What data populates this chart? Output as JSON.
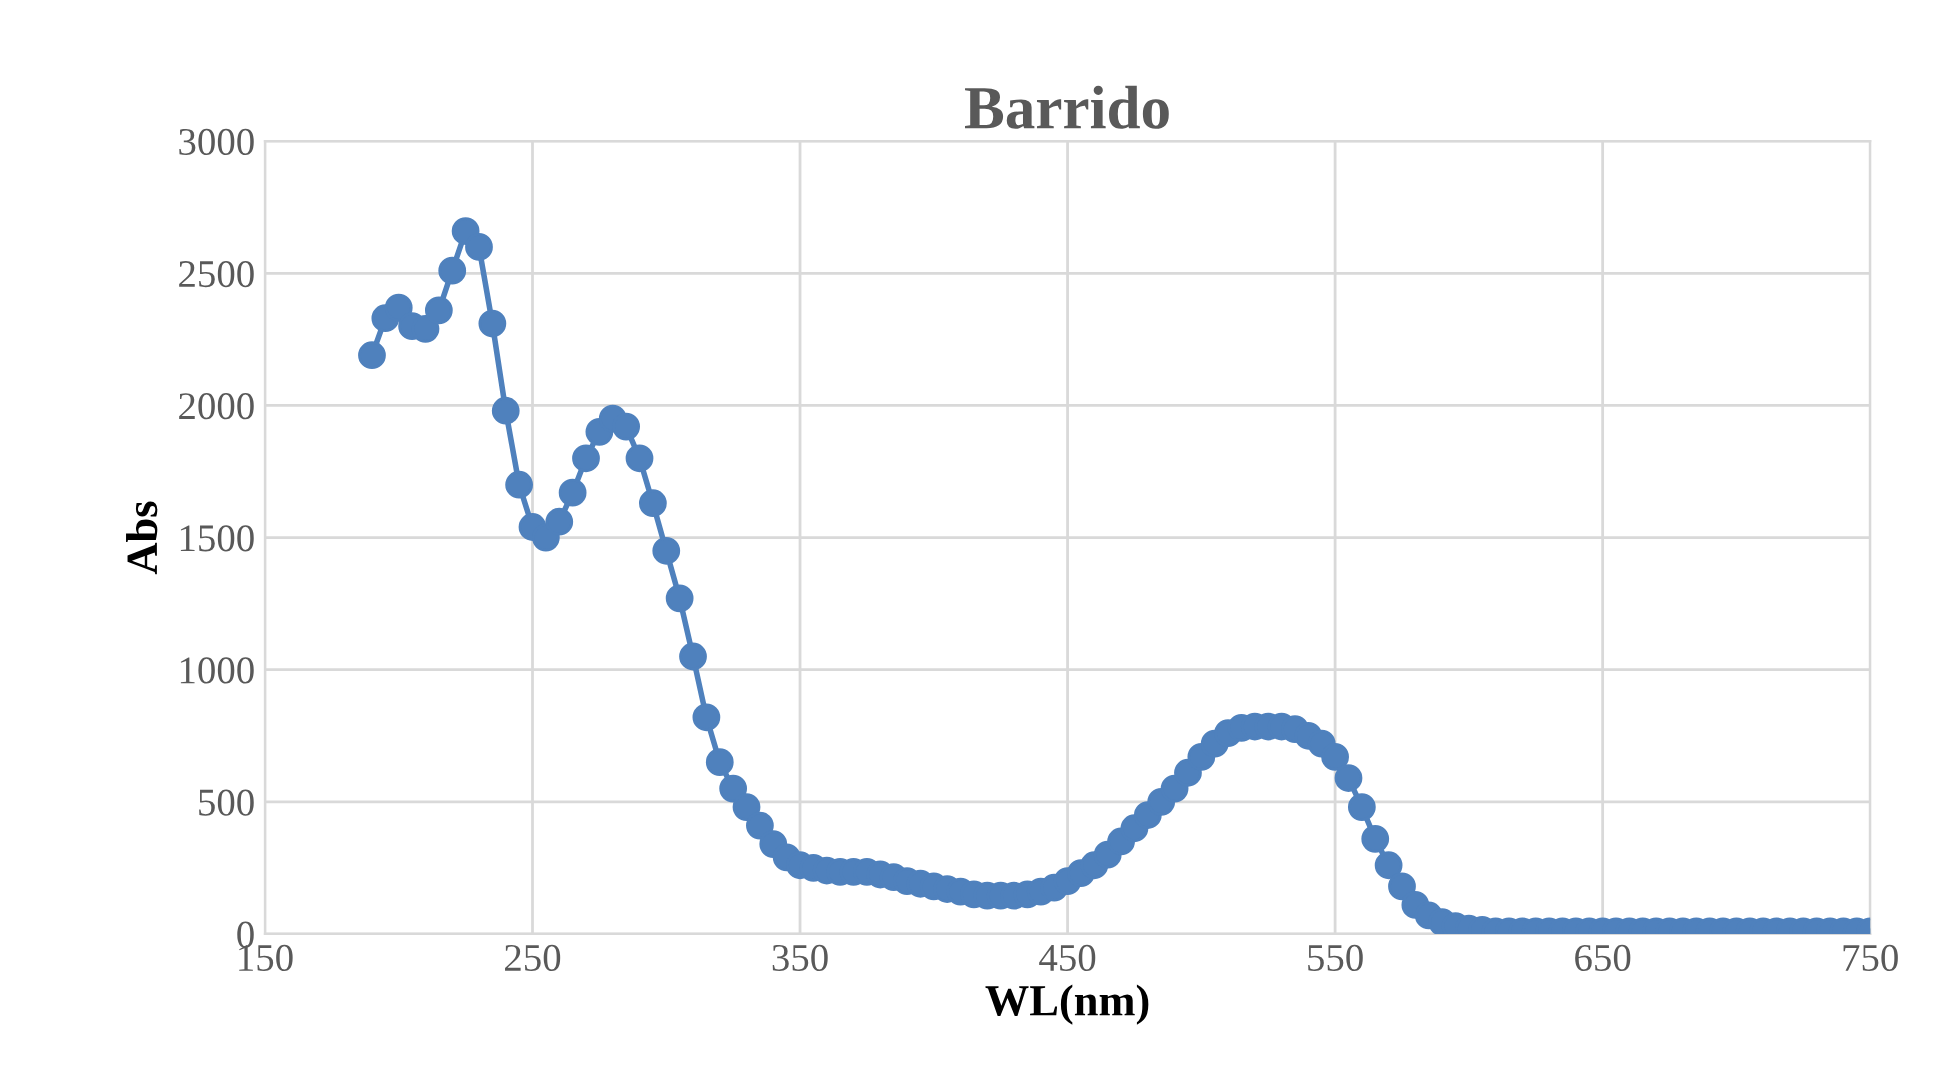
{
  "chart_data": {
    "type": "line",
    "title": "Barrido",
    "xlabel": "WL(nm)",
    "ylabel": "Abs",
    "x": [
      190,
      195,
      200,
      205,
      210,
      215,
      220,
      225,
      230,
      235,
      240,
      245,
      250,
      255,
      260,
      265,
      270,
      275,
      280,
      285,
      290,
      295,
      300,
      305,
      310,
      315,
      320,
      325,
      330,
      335,
      340,
      345,
      350,
      355,
      360,
      365,
      370,
      375,
      380,
      385,
      390,
      395,
      400,
      405,
      410,
      415,
      420,
      425,
      430,
      435,
      440,
      445,
      450,
      455,
      460,
      465,
      470,
      475,
      480,
      485,
      490,
      495,
      500,
      505,
      510,
      515,
      520,
      525,
      530,
      535,
      540,
      545,
      550,
      555,
      560,
      565,
      570,
      575,
      580,
      585,
      590,
      595,
      600,
      605,
      610,
      615,
      620,
      625,
      630,
      635,
      640,
      645,
      650,
      655,
      660,
      665,
      670,
      675,
      680,
      685,
      690,
      695,
      700,
      705,
      710,
      715,
      720,
      725,
      730,
      735,
      740,
      745,
      750
    ],
    "series": [
      {
        "color": "#4f81bd",
        "marker": "circle",
        "line_style": "solid",
        "values": [
          2190,
          2330,
          2370,
          2300,
          2290,
          2360,
          2510,
          2660,
          2600,
          2310,
          1980,
          1700,
          1540,
          1500,
          1560,
          1670,
          1800,
          1900,
          1950,
          1920,
          1800,
          1630,
          1450,
          1270,
          1050,
          820,
          650,
          550,
          480,
          410,
          340,
          290,
          260,
          250,
          240,
          235,
          235,
          235,
          225,
          215,
          200,
          190,
          180,
          170,
          160,
          150,
          145,
          145,
          145,
          150,
          160,
          175,
          200,
          230,
          260,
          300,
          350,
          400,
          450,
          500,
          550,
          610,
          670,
          720,
          760,
          780,
          785,
          785,
          785,
          775,
          750,
          720,
          670,
          590,
          480,
          360,
          260,
          180,
          110,
          70,
          45,
          30,
          20,
          15,
          10,
          10,
          10,
          10,
          10,
          10,
          10,
          10,
          10,
          10,
          10,
          10,
          10,
          10,
          10,
          10,
          10,
          10,
          10,
          10,
          10,
          10,
          10,
          10,
          10,
          10,
          10,
          10,
          10
        ]
      }
    ],
    "xlim": [
      150,
      750
    ],
    "xticks": [
      150,
      250,
      350,
      450,
      550,
      650,
      750
    ],
    "ylim": [
      0,
      3000
    ],
    "yticks": [
      0,
      500,
      1000,
      1500,
      2000,
      2500,
      3000
    ],
    "grid": true,
    "legend": false
  }
}
